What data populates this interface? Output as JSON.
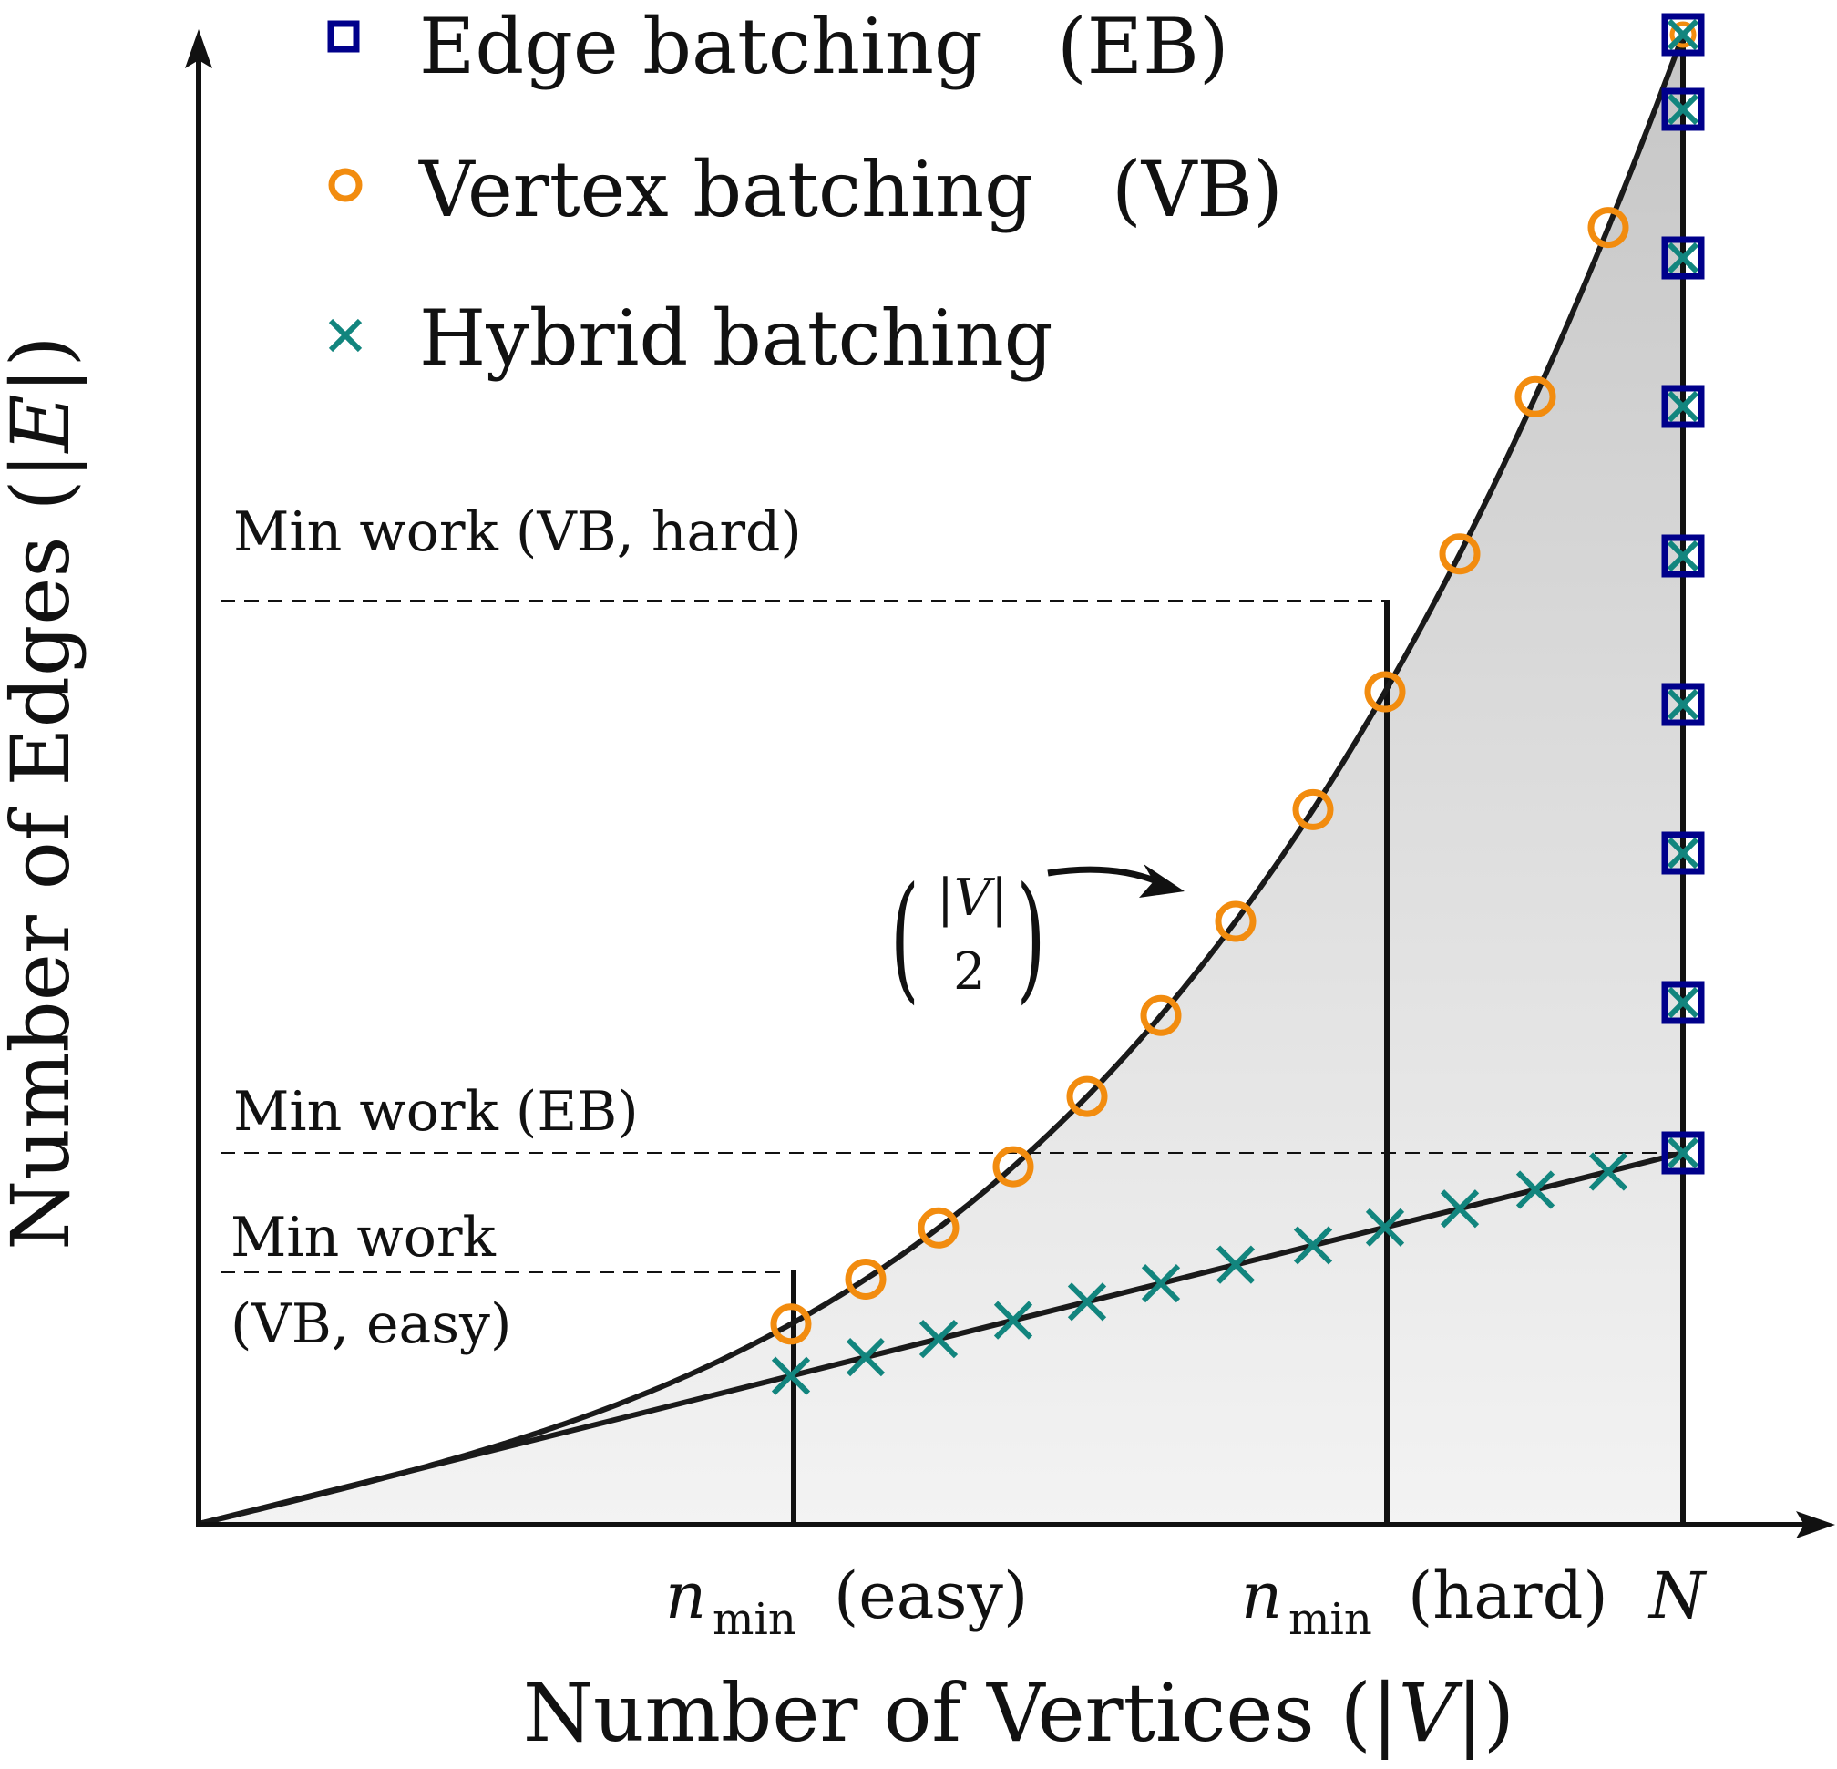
{
  "legend": {
    "items": [
      {
        "label": "Edge batching",
        "abbr": "(EB)",
        "marker": "square",
        "color": "#00008b"
      },
      {
        "label": "Vertex batching",
        "abbr": "(VB)",
        "marker": "circle",
        "color": "#f28c0f"
      },
      {
        "label": "Hybrid batching",
        "abbr": "",
        "marker": "x",
        "color": "#12857e"
      }
    ]
  },
  "axes": {
    "x_label_text": "Number of Vertices (",
    "x_label_var": "|V|",
    "x_label_close": ")",
    "y_label_text": "Number of Edges (",
    "y_label_var": "|E|",
    "y_label_close": ")"
  },
  "ticks": {
    "n": "n",
    "sub": "min",
    "easy": "(easy)",
    "hard": "(hard)",
    "N": "N"
  },
  "annotations": {
    "min_work_vb_hard": "Min work (VB, hard)",
    "min_work_eb": "Min work (EB)",
    "min_work_vb_easy_line1": "Min work",
    "min_work_vb_easy_line2": "(VB, easy)",
    "binom_top": "|V|",
    "binom_bottom": "2"
  },
  "colors": {
    "edge": "#00008b",
    "vertex": "#f28c0f",
    "hybrid": "#12857e",
    "axis": "#111111",
    "fill_top": "#c9c9c9",
    "fill_bottom": "#f4f4f4"
  }
}
